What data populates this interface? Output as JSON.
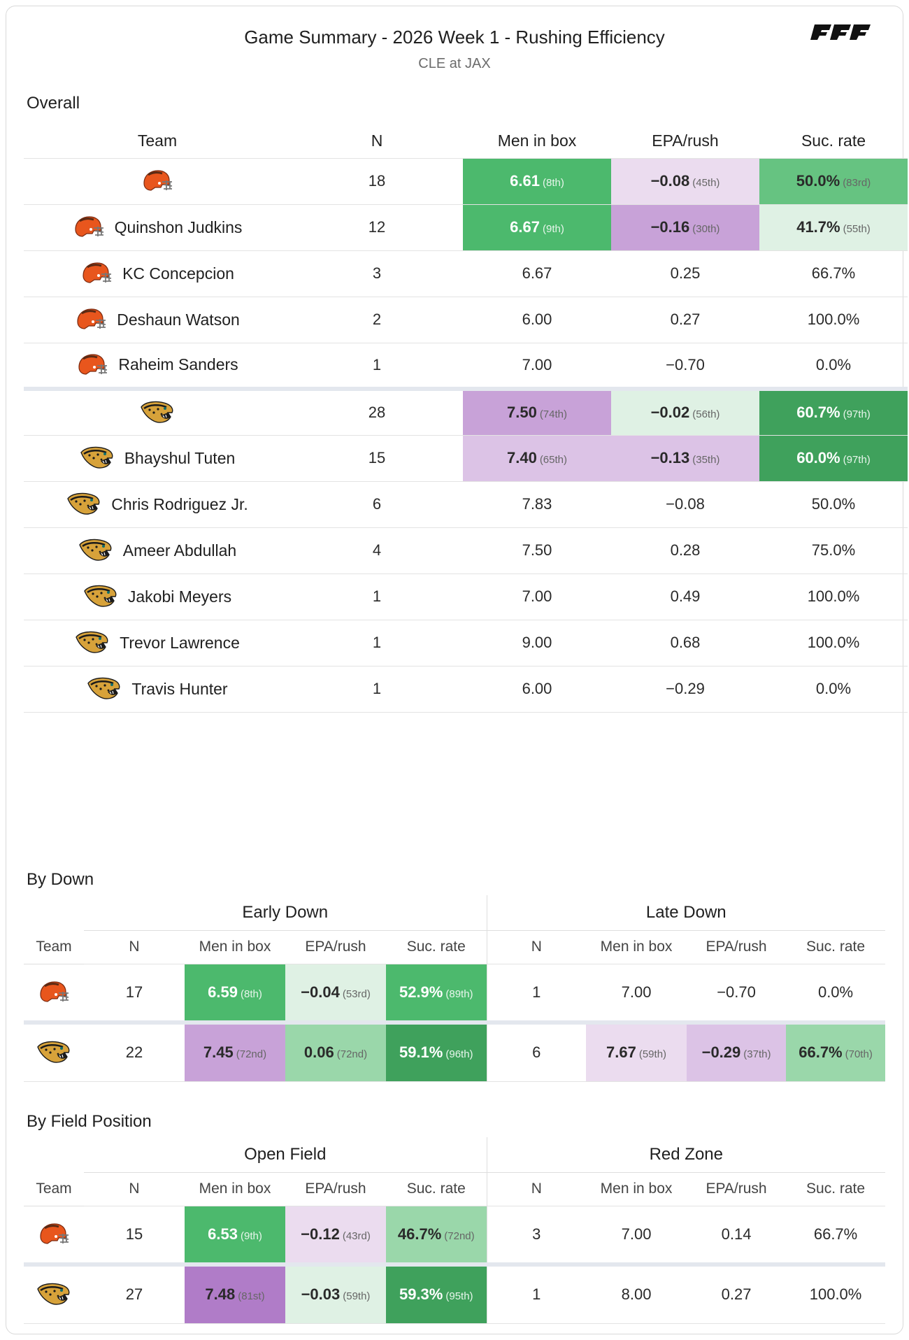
{
  "header": {
    "title": "Game Summary - 2026 Week 1 - Rushing Efficiency",
    "subtitle": "CLE at JAX",
    "brand": "PFF"
  },
  "colors": {
    "green_strong": "#3fa15c",
    "green_mid": "#4cb96d",
    "green_light": "#9ad7aa",
    "green_pale": "#dff1e4",
    "purple_strong": "#b07cc8",
    "purple_mid": "#c8a2d8",
    "purple_light": "#dcc3e6",
    "purple_pale": "#ebdcef"
  },
  "overall": {
    "section_title": "Overall",
    "columns": {
      "team": "Team",
      "n": "N",
      "men": "Men in box",
      "epa": "EPA/rush",
      "suc": "Suc. rate"
    },
    "rows": [
      {
        "logo": "browns-helmet-icon",
        "name": "",
        "n": "18",
        "men": "6.61",
        "men_rk": "(8th)",
        "epa": "−0.08",
        "epa_rk": "(45th)",
        "suc": "50.0%",
        "suc_rk": "(83rd)"
      },
      {
        "logo": "browns-helmet-icon",
        "name": "Quinshon Judkins",
        "n": "12",
        "men": "6.67",
        "men_rk": "(9th)",
        "epa": "−0.16",
        "epa_rk": "(30th)",
        "suc": "41.7%",
        "suc_rk": "(55th)"
      },
      {
        "logo": "browns-helmet-icon",
        "name": "KC Concepcion",
        "n": "3",
        "men": "6.67",
        "epa": "0.25",
        "suc": "66.7%"
      },
      {
        "logo": "browns-helmet-icon",
        "name": "Deshaun Watson",
        "n": "2",
        "men": "6.00",
        "epa": "0.27",
        "suc": "100.0%"
      },
      {
        "logo": "browns-helmet-icon",
        "name": "Raheim Sanders",
        "n": "1",
        "men": "7.00",
        "epa": "−0.70",
        "suc": "0.0%"
      },
      {
        "logo": "jaguars-logo-icon",
        "name": "",
        "n": "28",
        "men": "7.50",
        "men_rk": "(74th)",
        "epa": "−0.02",
        "epa_rk": "(56th)",
        "suc": "60.7%",
        "suc_rk": "(97th)"
      },
      {
        "logo": "jaguars-logo-icon",
        "name": "Bhayshul Tuten",
        "n": "15",
        "men": "7.40",
        "men_rk": "(65th)",
        "epa": "−0.13",
        "epa_rk": "(35th)",
        "suc": "60.0%",
        "suc_rk": "(97th)"
      },
      {
        "logo": "jaguars-logo-icon",
        "name": "Chris Rodriguez Jr.",
        "n": "6",
        "men": "7.83",
        "epa": "−0.08",
        "suc": "50.0%"
      },
      {
        "logo": "jaguars-logo-icon",
        "name": "Ameer Abdullah",
        "n": "4",
        "men": "7.50",
        "epa": "0.28",
        "suc": "75.0%"
      },
      {
        "logo": "jaguars-logo-icon",
        "name": "Jakobi Meyers",
        "n": "1",
        "men": "7.00",
        "epa": "0.49",
        "suc": "100.0%"
      },
      {
        "logo": "jaguars-logo-icon",
        "name": "Trevor Lawrence",
        "n": "1",
        "men": "9.00",
        "epa": "0.68",
        "suc": "100.0%"
      },
      {
        "logo": "jaguars-logo-icon",
        "name": "Travis Hunter",
        "n": "1",
        "men": "6.00",
        "epa": "−0.29",
        "suc": "0.0%"
      }
    ]
  },
  "by_down": {
    "section_title": "By Down",
    "group_left": "Early Down",
    "group_right": "Late Down",
    "team_label": "Team",
    "sub": {
      "n": "N",
      "men": "Men in box",
      "epa": "EPA/rush",
      "suc": "Suc. rate"
    },
    "rows": [
      {
        "logo": "browns-helmet-icon",
        "l": {
          "n": "17",
          "men": "6.59",
          "men_rk": "(8th)",
          "epa": "−0.04",
          "epa_rk": "(53rd)",
          "suc": "52.9%",
          "suc_rk": "(89th)"
        },
        "r": {
          "n": "1",
          "men": "7.00",
          "epa": "−0.70",
          "suc": "0.0%"
        }
      },
      {
        "logo": "jaguars-logo-icon",
        "l": {
          "n": "22",
          "men": "7.45",
          "men_rk": "(72nd)",
          "epa": "0.06",
          "epa_rk": "(72nd)",
          "suc": "59.1%",
          "suc_rk": "(96th)"
        },
        "r": {
          "n": "6",
          "men": "7.67",
          "men_rk": "(59th)",
          "epa": "−0.29",
          "epa_rk": "(37th)",
          "suc": "66.7%",
          "suc_rk": "(70th)"
        }
      }
    ]
  },
  "by_field": {
    "section_title": "By Field Position",
    "group_left": "Open Field",
    "group_right": "Red Zone",
    "team_label": "Team",
    "sub": {
      "n": "N",
      "men": "Men in box",
      "epa": "EPA/rush",
      "suc": "Suc. rate"
    },
    "rows": [
      {
        "logo": "browns-helmet-icon",
        "l": {
          "n": "15",
          "men": "6.53",
          "men_rk": "(9th)",
          "epa": "−0.12",
          "epa_rk": "(43rd)",
          "suc": "46.7%",
          "suc_rk": "(72nd)"
        },
        "r": {
          "n": "3",
          "men": "7.00",
          "epa": "0.14",
          "suc": "66.7%"
        }
      },
      {
        "logo": "jaguars-logo-icon",
        "l": {
          "n": "27",
          "men": "7.48",
          "men_rk": "(81st)",
          "epa": "−0.03",
          "epa_rk": "(59th)",
          "suc": "59.3%",
          "suc_rk": "(95th)"
        },
        "r": {
          "n": "1",
          "men": "8.00",
          "epa": "0.27",
          "suc": "100.0%"
        }
      }
    ]
  }
}
